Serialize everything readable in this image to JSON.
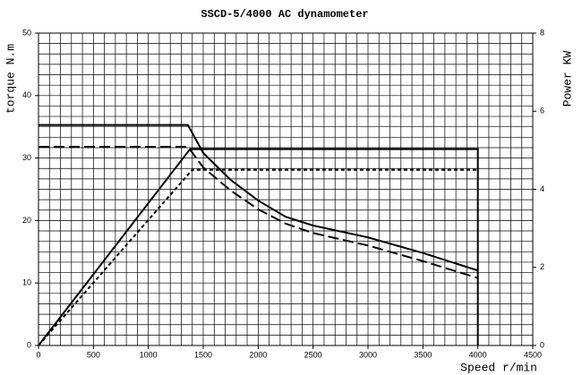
{
  "chart_data": {
    "type": "line",
    "title": "SSCD-5/4000 AC dynamometer",
    "x_label": "Speed r/min",
    "y_label": "torque N.m",
    "y2_label": "Power KW",
    "xlim": [
      0,
      4500
    ],
    "xticks": [
      0,
      500,
      1000,
      1500,
      2000,
      2500,
      3000,
      3500,
      4000,
      4500
    ],
    "ylim": [
      0,
      50
    ],
    "yticks": [
      0,
      10,
      20,
      30,
      40,
      50
    ],
    "y2lim": [
      0,
      8
    ],
    "y2ticks": [
      0,
      2,
      4,
      6,
      8
    ],
    "grid": {
      "x_step": 100,
      "y_divisions": 30
    },
    "series": [
      {
        "color": "#000",
        "dash": "solid",
        "axis": "y",
        "x": [
          0,
          1360,
          1500,
          1750,
          2000,
          2250,
          2500,
          3000,
          3500,
          4000
        ],
        "values": [
          35.3,
          35.3,
          30.8,
          26.5,
          23.2,
          20.6,
          19.2,
          17.3,
          14.8,
          12.0
        ]
      },
      {
        "color": "#000",
        "dash": "long",
        "axis": "y",
        "x": [
          0,
          1360,
          1500,
          1750,
          2000,
          2250,
          2500,
          3000,
          3500,
          4000
        ],
        "values": [
          31.8,
          31.8,
          28.5,
          24.8,
          21.8,
          19.5,
          18.0,
          16.0,
          13.5,
          10.8
        ]
      },
      {
        "color": "#000",
        "dash": "solid",
        "axis": "y2",
        "x": [
          0,
          1380,
          4000,
          4000
        ],
        "values": [
          0,
          5.03,
          5.03,
          0
        ]
      },
      {
        "color": "#000",
        "dash": "short",
        "axis": "y2",
        "x": [
          0,
          1400,
          4000
        ],
        "values": [
          0,
          4.5,
          4.5
        ]
      }
    ]
  }
}
